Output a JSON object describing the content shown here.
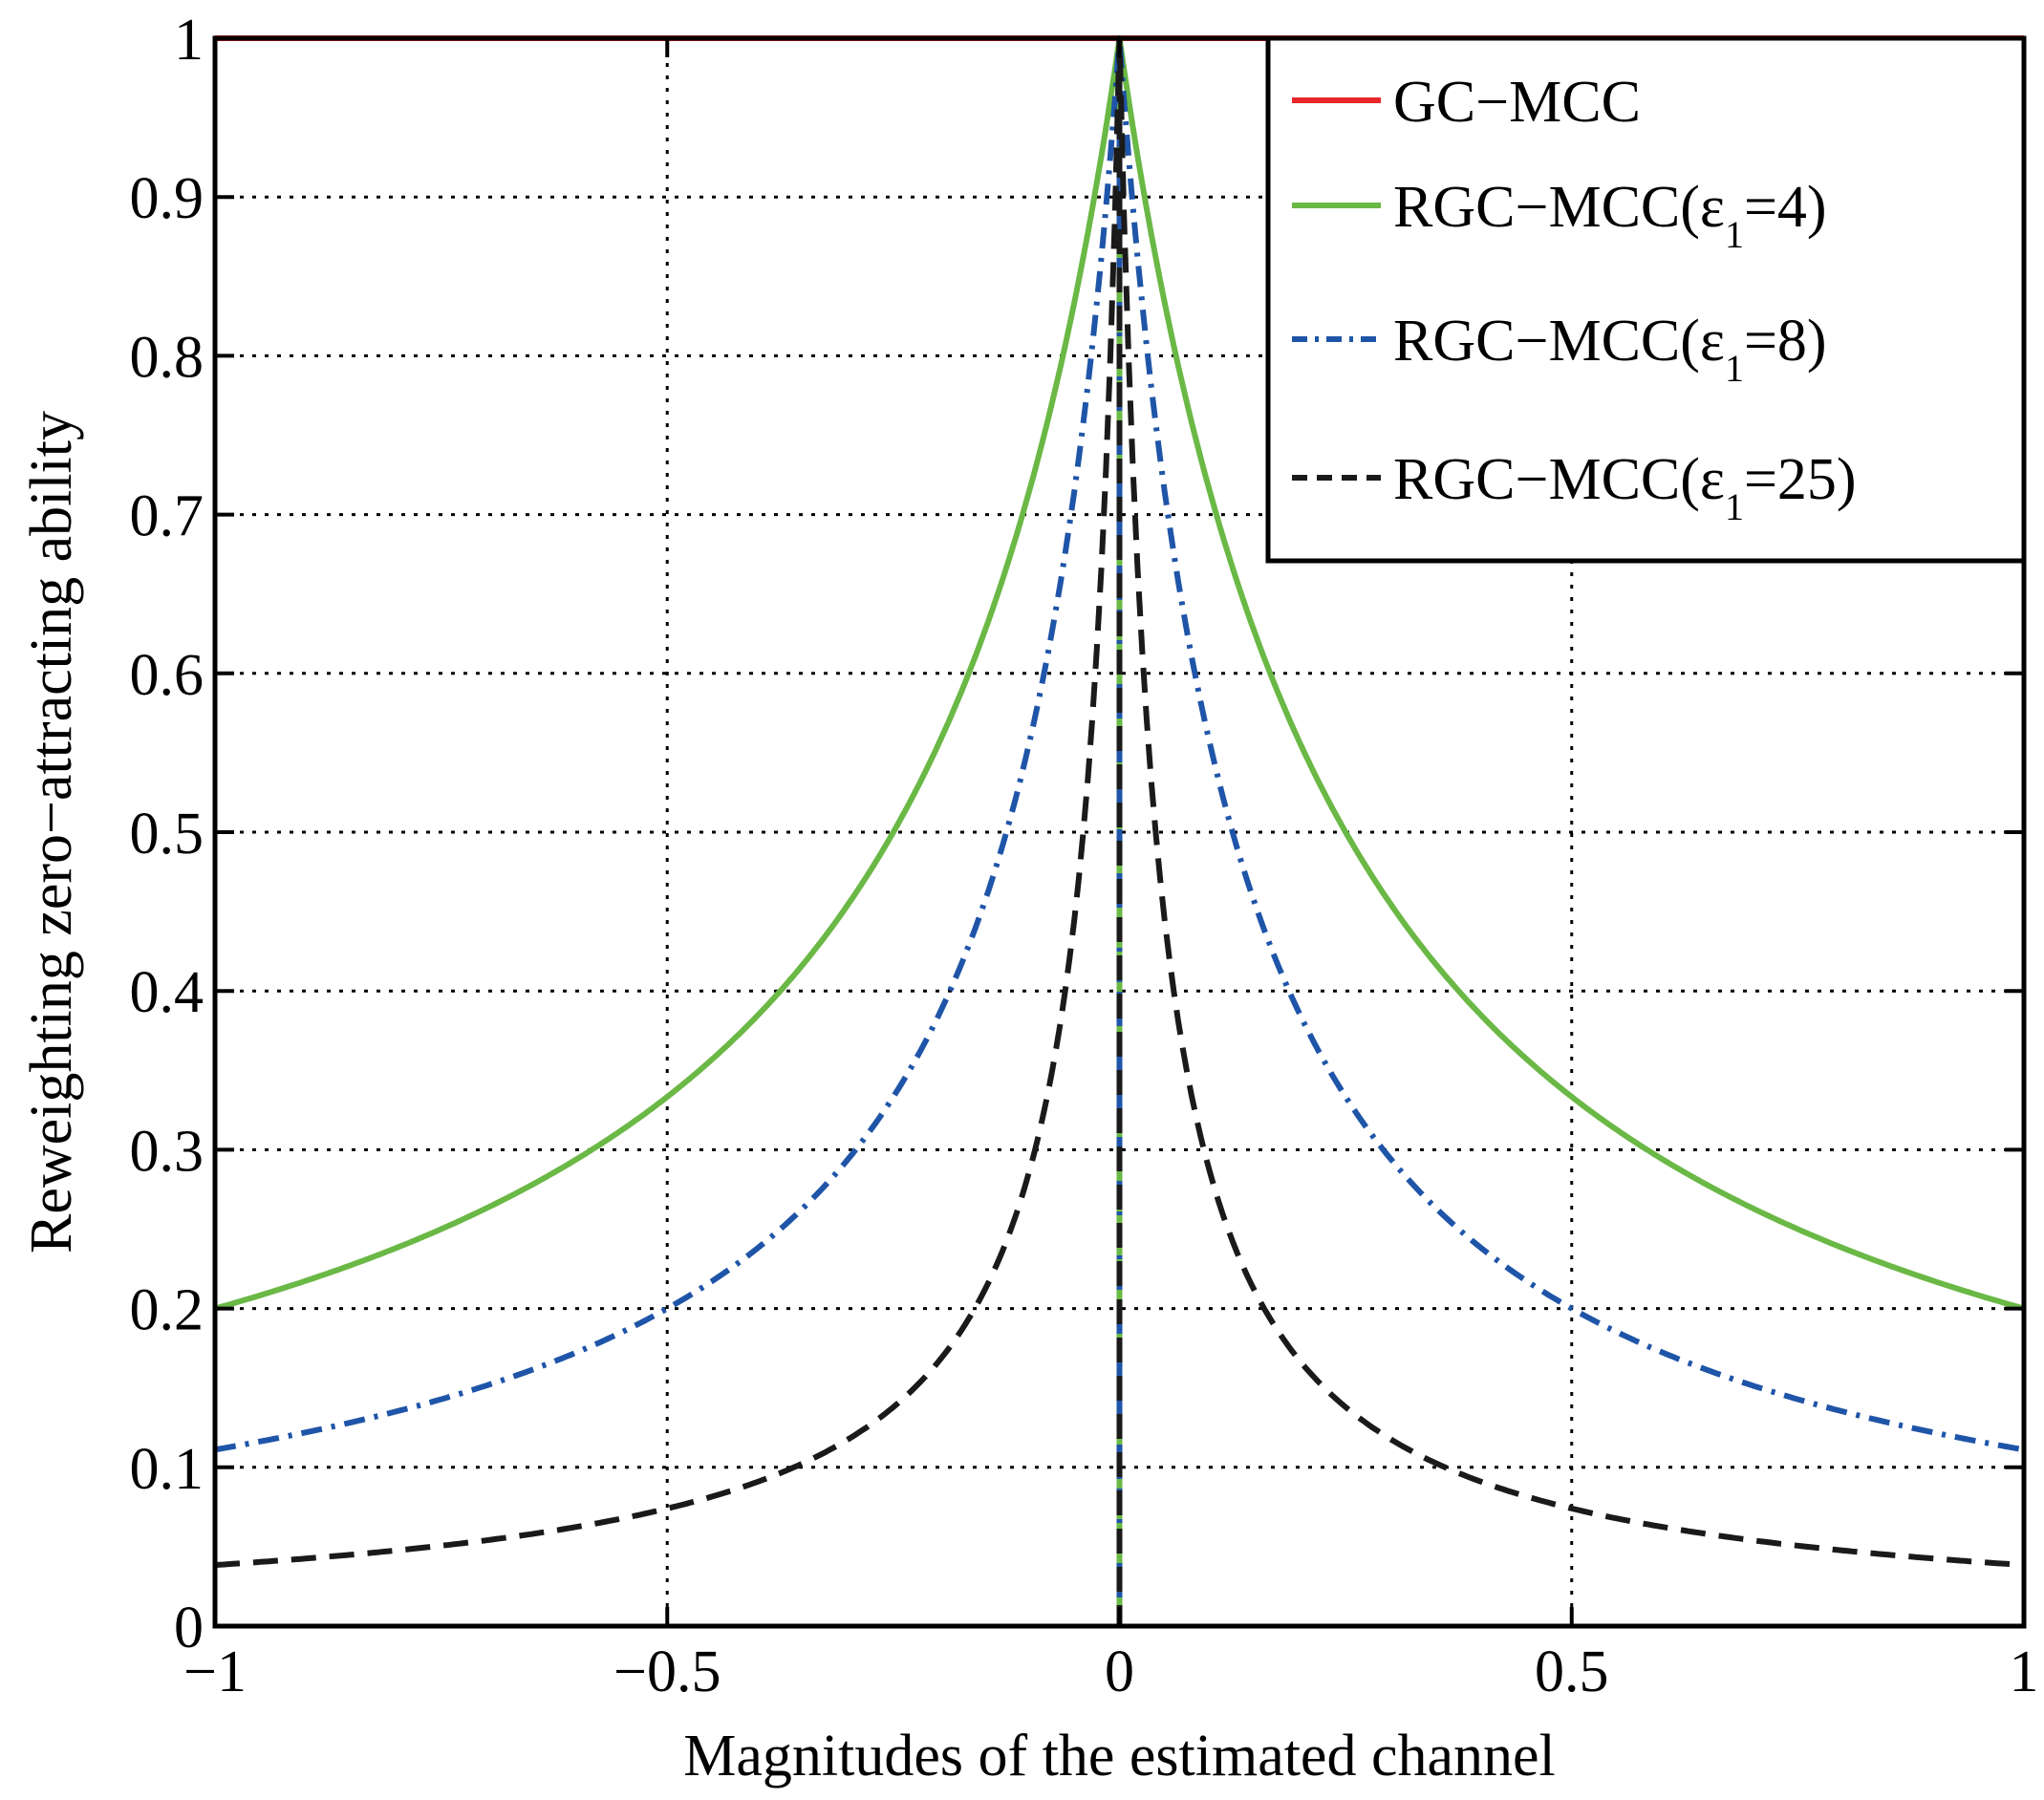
{
  "chart_data": {
    "type": "line",
    "title": "",
    "xlabel": "Magnitudes of the estimated channel",
    "ylabel": "Reweighting zero−attracting ability",
    "xlim": [
      -1,
      1
    ],
    "ylim": [
      0,
      1
    ],
    "grid": true,
    "legend_position": "top-right",
    "x_ticks": [
      {
        "value": -1,
        "label": "−1"
      },
      {
        "value": -0.5,
        "label": "−0.5"
      },
      {
        "value": 0,
        "label": "0"
      },
      {
        "value": 0.5,
        "label": "0.5"
      },
      {
        "value": 1,
        "label": "1"
      }
    ],
    "y_ticks": [
      {
        "value": 0,
        "label": "0"
      },
      {
        "value": 0.1,
        "label": "0.1"
      },
      {
        "value": 0.2,
        "label": "0.2"
      },
      {
        "value": 0.3,
        "label": "0.3"
      },
      {
        "value": 0.4,
        "label": "0.4"
      },
      {
        "value": 0.5,
        "label": "0.5"
      },
      {
        "value": 0.6,
        "label": "0.6"
      },
      {
        "value": 0.7,
        "label": "0.7"
      },
      {
        "value": 0.8,
        "label": "0.8"
      },
      {
        "value": 0.9,
        "label": "0.9"
      },
      {
        "value": 1,
        "label": "1"
      }
    ],
    "series": [
      {
        "name": "GC−MCC",
        "legend_main": "GC−MCC",
        "legend_sub": "",
        "legend_tail": "",
        "color": "#e8262b",
        "dash": "solid",
        "epsilon": 0,
        "x": [
          -1,
          0,
          1
        ],
        "y": [
          1,
          1,
          1
        ]
      },
      {
        "name": "RGC−MCC(ε1=4)",
        "legend_main": "RGC−MCC(ε",
        "legend_sub": "1",
        "legend_tail": "=4)",
        "color": "#6ab845",
        "dash": "solid",
        "epsilon": 4,
        "x": [
          -1,
          -0.75,
          -0.5,
          -0.25,
          0,
          0.25,
          0.5,
          0.75,
          1
        ],
        "y": [
          0.2,
          0.25,
          0.333,
          0.5,
          1,
          0.5,
          0.333,
          0.25,
          0.2
        ]
      },
      {
        "name": "RGC−MCC(ε1=8)",
        "legend_main": "RGC−MCC(ε",
        "legend_sub": "1",
        "legend_tail": "=8)",
        "color": "#1f55a8",
        "dash": "dashdot",
        "epsilon": 8,
        "x": [
          -1,
          -0.75,
          -0.5,
          -0.25,
          0,
          0.25,
          0.5,
          0.75,
          1
        ],
        "y": [
          0.111,
          0.143,
          0.2,
          0.333,
          1,
          0.333,
          0.2,
          0.143,
          0.111
        ]
      },
      {
        "name": "RGC−MCC(ε1=25)",
        "legend_main": "RGC−MCC(ε",
        "legend_sub": "1",
        "legend_tail": "=25)",
        "color": "#1a1a1a",
        "dash": "dashed",
        "epsilon": 25,
        "x": [
          -1,
          -0.75,
          -0.5,
          -0.25,
          0,
          0.25,
          0.5,
          0.75,
          1
        ],
        "y": [
          0.038,
          0.051,
          0.074,
          0.138,
          1,
          0.138,
          0.074,
          0.051,
          0.038
        ]
      }
    ]
  }
}
